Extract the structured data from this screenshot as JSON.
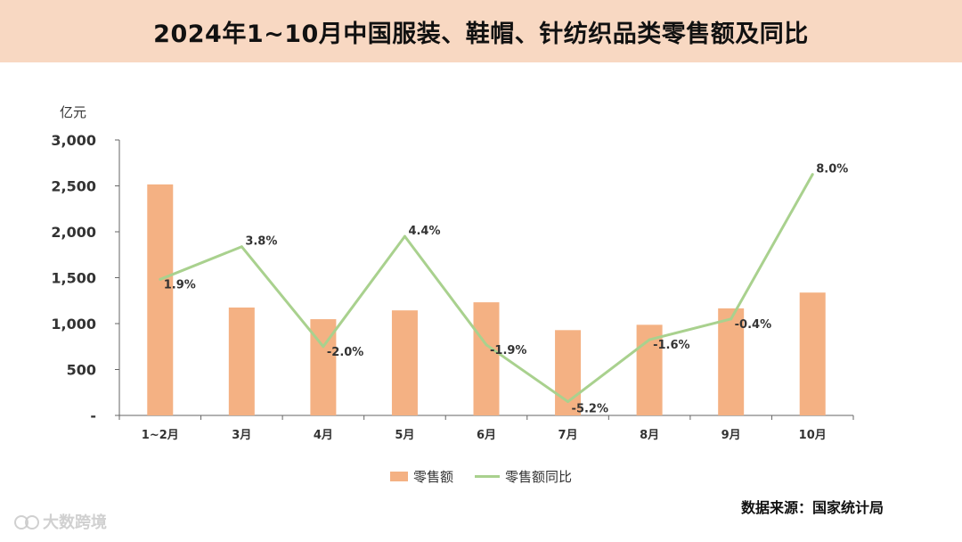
{
  "header": {
    "title": "2024年1~10月中国服装、鞋帽、针纺织品类零售额及同比"
  },
  "footer": {
    "source": "数据来源：国家统计局",
    "watermark": "大数跨境"
  },
  "chart_data": {
    "type": "bar",
    "ylabel": "亿元",
    "categories": [
      "1~2月",
      "3月",
      "4月",
      "5月",
      "6月",
      "7月",
      "8月",
      "9月",
      "10月"
    ],
    "ylim": [
      0,
      3000
    ],
    "yticks": [
      0,
      500,
      1000,
      1500,
      2000,
      2500,
      3000
    ],
    "ytick_labels": [
      "-",
      "500",
      "1,000",
      "1,500",
      "2,000",
      "2,500",
      "3,000"
    ],
    "series": [
      {
        "name": "零售额",
        "type": "bar",
        "color": "#f4b183",
        "values": [
          2516,
          1175,
          1048,
          1144,
          1232,
          929,
          987,
          1166,
          1338
        ]
      },
      {
        "name": "零售额同比",
        "type": "line",
        "color": "#a9d18e",
        "values": [
          1.9,
          3.8,
          -2.0,
          4.4,
          -1.9,
          -5.2,
          -1.6,
          -0.4,
          8.0
        ],
        "labels": [
          "1.9%",
          "3.8%",
          "-2.0%",
          "4.4%",
          "-1.9%",
          "-5.2%",
          "-1.6%",
          "-0.4%",
          "8.0%"
        ],
        "ylim": [
          -6,
          10
        ]
      }
    ],
    "legend_position": "bottom",
    "grid": false
  }
}
